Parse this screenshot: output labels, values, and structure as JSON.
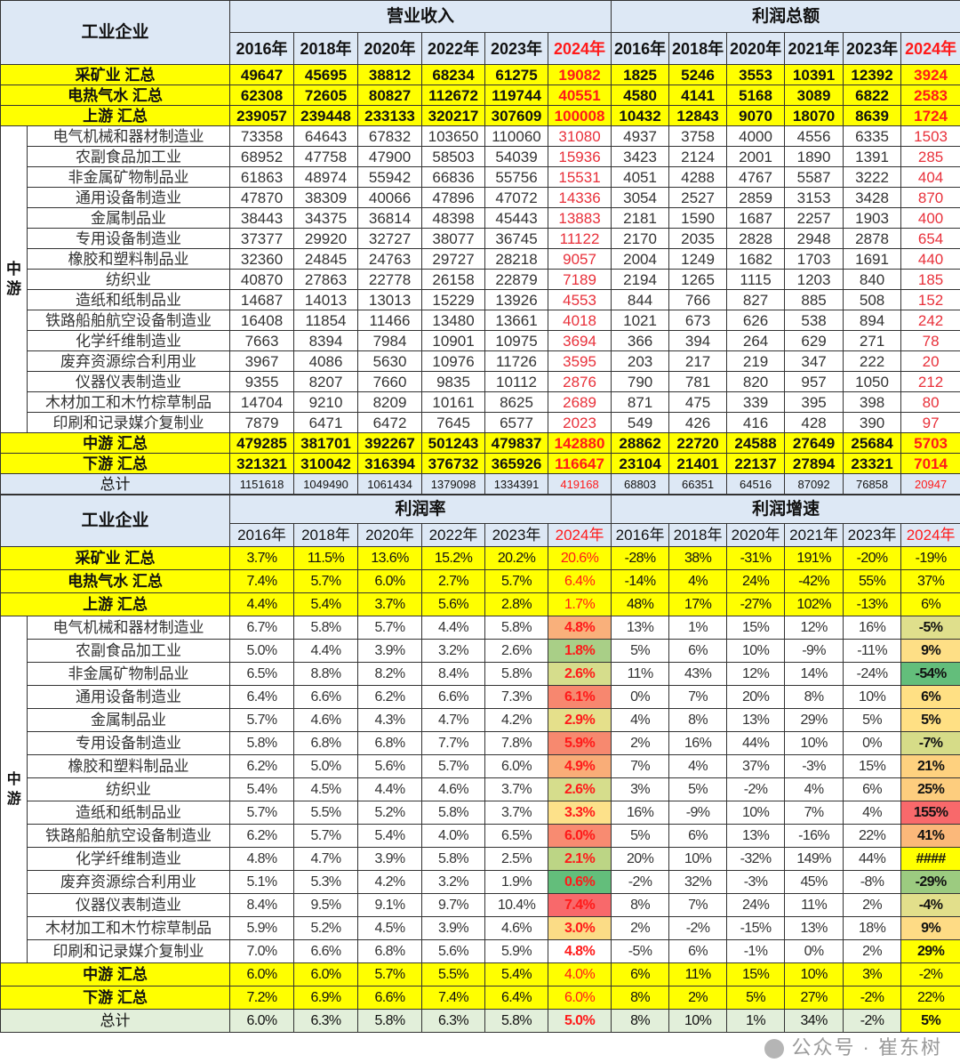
{
  "top": {
    "corner": "工业企业",
    "group_a": "营业收入",
    "group_b": "利润总额",
    "years_a": [
      "2016年",
      "2018年",
      "2020年",
      "2022年",
      "2023年",
      "2024年"
    ],
    "years_b": [
      "2016年",
      "2018年",
      "2020年",
      "2021年",
      "2023年",
      "2024年"
    ],
    "mid_group_label": "中游",
    "rows": [
      {
        "type": "yel",
        "label": "采矿业 汇总",
        "a": [
          "49647",
          "45695",
          "38812",
          "68234",
          "61275",
          "19082"
        ],
        "b": [
          "1825",
          "5246",
          "3553",
          "10391",
          "12392",
          "3924"
        ]
      },
      {
        "type": "yel",
        "label": "电热气水 汇总",
        "a": [
          "62308",
          "72605",
          "80827",
          "112672",
          "119744",
          "40551"
        ],
        "b": [
          "4580",
          "4141",
          "5168",
          "3089",
          "6822",
          "2583"
        ]
      },
      {
        "type": "yel",
        "label": "上游 汇总",
        "a": [
          "239057",
          "239448",
          "233133",
          "320217",
          "307609",
          "100008"
        ],
        "b": [
          "10432",
          "12843",
          "9070",
          "18070",
          "8639",
          "1724"
        ]
      },
      {
        "type": "mid",
        "label": "电气机械和器材制造业",
        "a": [
          "73358",
          "64643",
          "67832",
          "103650",
          "110060",
          "31080"
        ],
        "b": [
          "4937",
          "3758",
          "4000",
          "4556",
          "6335",
          "1503"
        ]
      },
      {
        "type": "mid",
        "label": "农副食品加工业",
        "a": [
          "68952",
          "47758",
          "47900",
          "58503",
          "54039",
          "15936"
        ],
        "b": [
          "3423",
          "2124",
          "2001",
          "1890",
          "1391",
          "285"
        ]
      },
      {
        "type": "mid",
        "label": "非金属矿物制品业",
        "a": [
          "61863",
          "48974",
          "55942",
          "66836",
          "55756",
          "15531"
        ],
        "b": [
          "4051",
          "4288",
          "4767",
          "5587",
          "3222",
          "404"
        ]
      },
      {
        "type": "mid",
        "label": "通用设备制造业",
        "a": [
          "47870",
          "38309",
          "40066",
          "47896",
          "47072",
          "14336"
        ],
        "b": [
          "3054",
          "2527",
          "2859",
          "3153",
          "3428",
          "870"
        ]
      },
      {
        "type": "mid",
        "label": "金属制品业",
        "a": [
          "38443",
          "34375",
          "36814",
          "48398",
          "45443",
          "13883"
        ],
        "b": [
          "2181",
          "1590",
          "1687",
          "2257",
          "1903",
          "400"
        ]
      },
      {
        "type": "mid",
        "label": "专用设备制造业",
        "a": [
          "37377",
          "29920",
          "32727",
          "38077",
          "36745",
          "11122"
        ],
        "b": [
          "2170",
          "2035",
          "2828",
          "2948",
          "2878",
          "654"
        ]
      },
      {
        "type": "mid",
        "label": "橡胶和塑料制品业",
        "a": [
          "32360",
          "24845",
          "24763",
          "29727",
          "28218",
          "9057"
        ],
        "b": [
          "2004",
          "1249",
          "1682",
          "1703",
          "1691",
          "440"
        ]
      },
      {
        "type": "mid",
        "label": "纺织业",
        "a": [
          "40870",
          "27863",
          "22778",
          "26158",
          "22879",
          "7189"
        ],
        "b": [
          "2194",
          "1265",
          "1115",
          "1203",
          "840",
          "185"
        ]
      },
      {
        "type": "mid",
        "label": "造纸和纸制品业",
        "a": [
          "14687",
          "14013",
          "13013",
          "15229",
          "13926",
          "4553"
        ],
        "b": [
          "844",
          "766",
          "827",
          "885",
          "508",
          "152"
        ]
      },
      {
        "type": "mid",
        "label": "铁路船舶航空设备制造业",
        "a": [
          "16408",
          "11854",
          "11466",
          "13480",
          "13661",
          "4018"
        ],
        "b": [
          "1021",
          "673",
          "626",
          "538",
          "894",
          "242"
        ]
      },
      {
        "type": "mid",
        "label": "化学纤维制造业",
        "a": [
          "7663",
          "8394",
          "7984",
          "10901",
          "10975",
          "3694"
        ],
        "b": [
          "366",
          "394",
          "264",
          "629",
          "271",
          "78"
        ]
      },
      {
        "type": "mid",
        "label": "废弃资源综合利用业",
        "a": [
          "3967",
          "4086",
          "5630",
          "10976",
          "11726",
          "3595"
        ],
        "b": [
          "203",
          "217",
          "219",
          "347",
          "222",
          "20"
        ]
      },
      {
        "type": "mid",
        "label": "仪器仪表制造业",
        "a": [
          "9355",
          "8207",
          "7660",
          "9835",
          "10112",
          "2876"
        ],
        "b": [
          "790",
          "781",
          "820",
          "957",
          "1050",
          "212"
        ]
      },
      {
        "type": "mid",
        "label": "木材加工和木竹棕草制品",
        "a": [
          "14704",
          "9210",
          "8209",
          "10161",
          "8625",
          "2689"
        ],
        "b": [
          "871",
          "475",
          "339",
          "395",
          "398",
          "80"
        ]
      },
      {
        "type": "mid",
        "label": "印刷和记录媒介复制业",
        "a": [
          "7879",
          "6471",
          "6472",
          "7645",
          "6577",
          "2023"
        ],
        "b": [
          "549",
          "426",
          "416",
          "428",
          "390",
          "97"
        ]
      },
      {
        "type": "yel",
        "label": "中游 汇总",
        "a": [
          "479285",
          "381701",
          "392267",
          "501243",
          "479837",
          "142880"
        ],
        "b": [
          "28862",
          "22720",
          "24588",
          "27649",
          "25684",
          "5703"
        ]
      },
      {
        "type": "yel",
        "label": "下游 汇总",
        "a": [
          "321321",
          "310042",
          "316394",
          "376732",
          "365926",
          "116647"
        ],
        "b": [
          "23104",
          "21401",
          "22137",
          "27894",
          "23321",
          "7014"
        ]
      },
      {
        "type": "tot",
        "label": "总计",
        "a": [
          "1151618",
          "1049490",
          "1061434",
          "1379098",
          "1334391",
          "419168"
        ],
        "b": [
          "68803",
          "66351",
          "64516",
          "87092",
          "76858",
          "20947"
        ]
      }
    ]
  },
  "bottom": {
    "corner": "工业企业",
    "group_a": "利润率",
    "group_b": "利润增速",
    "years_a": [
      "2016年",
      "2018年",
      "2020年",
      "2022年",
      "2023年",
      "2024年"
    ],
    "years_b": [
      "2016年",
      "2018年",
      "2020年",
      "2021年",
      "2023年",
      "2024年"
    ],
    "mid_group_label": "中游",
    "rows": [
      {
        "type": "yel",
        "label": "采矿业 汇总",
        "a": [
          "3.7%",
          "11.5%",
          "13.6%",
          "15.2%",
          "20.2%",
          "20.6%"
        ],
        "b": [
          "-28%",
          "38%",
          "-31%",
          "191%",
          "-20%",
          "-19%"
        ],
        "ca": "#ffff00",
        "cb": "#ffff00"
      },
      {
        "type": "yel",
        "label": "电热气水 汇总",
        "a": [
          "7.4%",
          "5.7%",
          "6.0%",
          "2.7%",
          "5.7%",
          "6.4%"
        ],
        "b": [
          "-14%",
          "4%",
          "24%",
          "-42%",
          "55%",
          "37%"
        ],
        "ca": "#ffff00",
        "cb": "#ffff00"
      },
      {
        "type": "yel",
        "label": "上游 汇总",
        "a": [
          "4.4%",
          "5.4%",
          "3.7%",
          "5.6%",
          "2.8%",
          "1.7%"
        ],
        "b": [
          "48%",
          "17%",
          "-27%",
          "102%",
          "-13%",
          "6%"
        ],
        "ca": "#ffff00",
        "cb": "#ffff00"
      },
      {
        "type": "mid",
        "label": "电气机械和器材制造业",
        "a": [
          "6.7%",
          "5.8%",
          "5.7%",
          "4.4%",
          "5.8%",
          "4.8%"
        ],
        "b": [
          "13%",
          "1%",
          "15%",
          "12%",
          "16%",
          "-5%"
        ],
        "ca": "#f9b07b",
        "cb": "#dfdf8c"
      },
      {
        "type": "mid",
        "label": "农副食品加工业",
        "a": [
          "5.0%",
          "4.4%",
          "3.9%",
          "3.2%",
          "2.6%",
          "1.8%"
        ],
        "b": [
          "5%",
          "6%",
          "10%",
          "-9%",
          "-11%",
          "9%"
        ],
        "ca": "#a9cf87",
        "cb": "#fedf86"
      },
      {
        "type": "mid",
        "label": "非金属矿物制品业",
        "a": [
          "6.5%",
          "8.8%",
          "8.2%",
          "8.4%",
          "5.8%",
          "2.6%"
        ],
        "b": [
          "11%",
          "43%",
          "12%",
          "14%",
          "-24%",
          "-54%"
        ],
        "ca": "#d6dd8c",
        "cb": "#63be7b"
      },
      {
        "type": "mid",
        "label": "通用设备制造业",
        "a": [
          "6.4%",
          "6.6%",
          "6.2%",
          "6.6%",
          "7.3%",
          "6.1%"
        ],
        "b": [
          "0%",
          "7%",
          "20%",
          "8%",
          "10%",
          "6%"
        ],
        "ca": "#f7876f",
        "cb": "#ffe084"
      },
      {
        "type": "mid",
        "label": "金属制品业",
        "a": [
          "5.7%",
          "4.6%",
          "4.3%",
          "4.7%",
          "4.2%",
          "2.9%"
        ],
        "b": [
          "4%",
          "8%",
          "13%",
          "29%",
          "5%",
          "5%"
        ],
        "ca": "#e5e08b",
        "cb": "#ffe084"
      },
      {
        "type": "mid",
        "label": "专用设备制造业",
        "a": [
          "5.8%",
          "6.8%",
          "6.8%",
          "7.7%",
          "7.8%",
          "5.9%"
        ],
        "b": [
          "2%",
          "16%",
          "44%",
          "10%",
          "0%",
          "-7%"
        ],
        "ca": "#f7896f",
        "cb": "#d6dc88"
      },
      {
        "type": "mid",
        "label": "橡胶和塑料制品业",
        "a": [
          "6.2%",
          "5.0%",
          "5.6%",
          "5.7%",
          "6.0%",
          "4.9%"
        ],
        "b": [
          "7%",
          "4%",
          "37%",
          "-3%",
          "15%",
          "21%"
        ],
        "ca": "#f9ad78",
        "cb": "#fed17f"
      },
      {
        "type": "mid",
        "label": "纺织业",
        "a": [
          "5.4%",
          "4.5%",
          "4.4%",
          "4.6%",
          "3.7%",
          "2.6%"
        ],
        "b": [
          "3%",
          "5%",
          "-2%",
          "4%",
          "6%",
          "25%"
        ],
        "ca": "#d6dd8c",
        "cb": "#fdcd7e"
      },
      {
        "type": "mid",
        "label": "造纸和纸制品业",
        "a": [
          "5.7%",
          "5.5%",
          "5.2%",
          "5.8%",
          "3.7%",
          "3.3%"
        ],
        "b": [
          "16%",
          "-9%",
          "10%",
          "7%",
          "4%",
          "155%"
        ],
        "ca": "#fde18a",
        "cb": "#f8696b"
      },
      {
        "type": "mid",
        "label": "铁路船舶航空设备制造业",
        "a": [
          "6.2%",
          "5.7%",
          "5.4%",
          "4.0%",
          "6.5%",
          "6.0%"
        ],
        "b": [
          "5%",
          "6%",
          "13%",
          "-16%",
          "22%",
          "41%"
        ],
        "ca": "#f88b71",
        "cb": "#fbb87a"
      },
      {
        "type": "mid",
        "label": "化学纤维制造业",
        "a": [
          "4.8%",
          "4.7%",
          "3.9%",
          "5.8%",
          "2.5%",
          "2.1%"
        ],
        "b": [
          "20%",
          "10%",
          "-32%",
          "149%",
          "44%",
          "####"
        ],
        "ca": "#bcd585",
        "cb": "#ffff00"
      },
      {
        "type": "mid",
        "label": "废弃资源综合利用业",
        "a": [
          "5.1%",
          "5.3%",
          "4.2%",
          "3.2%",
          "1.9%",
          "0.6%"
        ],
        "b": [
          "-2%",
          "32%",
          "-3%",
          "45%",
          "-8%",
          "-29%"
        ],
        "ca": "#63be7b",
        "cb": "#9ccb80"
      },
      {
        "type": "mid",
        "label": "仪器仪表制造业",
        "a": [
          "8.4%",
          "9.5%",
          "9.1%",
          "9.7%",
          "10.4%",
          "7.4%"
        ],
        "b": [
          "8%",
          "7%",
          "24%",
          "11%",
          "2%",
          "-4%"
        ],
        "ca": "#f8696b",
        "cb": "#e2df8b"
      },
      {
        "type": "mid",
        "label": "木材加工和木竹棕草制品",
        "a": [
          "5.9%",
          "5.2%",
          "4.5%",
          "3.9%",
          "4.6%",
          "3.0%"
        ],
        "b": [
          "2%",
          "-2%",
          "-15%",
          "13%",
          "18%",
          "9%"
        ],
        "ca": "#fbdc86",
        "cb": "#fedb85"
      },
      {
        "type": "mid",
        "label": "印刷和记录媒介复制业",
        "a": [
          "7.0%",
          "6.6%",
          "6.8%",
          "5.6%",
          "5.9%",
          "4.8%"
        ],
        "b": [
          "-5%",
          "6%",
          "-1%",
          "0%",
          "2%",
          "29%"
        ],
        "ca": "#ffffff",
        "cb": "#ffff00"
      },
      {
        "type": "yel",
        "label": "中游 汇总",
        "a": [
          "6.0%",
          "6.0%",
          "5.7%",
          "5.5%",
          "5.4%",
          "4.0%"
        ],
        "b": [
          "6%",
          "11%",
          "15%",
          "10%",
          "3%",
          "-2%"
        ],
        "ca": "#ffff00",
        "cb": "#ffff00"
      },
      {
        "type": "yel",
        "label": "下游 汇总",
        "a": [
          "7.2%",
          "6.9%",
          "6.6%",
          "7.4%",
          "6.4%",
          "6.0%"
        ],
        "b": [
          "8%",
          "2%",
          "5%",
          "27%",
          "-2%",
          "22%"
        ],
        "ca": "#ffff00",
        "cb": "#ffff00"
      },
      {
        "type": "tot",
        "label": "总计",
        "a": [
          "6.0%",
          "6.3%",
          "5.8%",
          "6.3%",
          "5.8%",
          "5.0%"
        ],
        "b": [
          "8%",
          "10%",
          "1%",
          "34%",
          "-2%",
          "5%"
        ],
        "ca": "#e2efda",
        "cb": "#ffff00"
      }
    ]
  },
  "watermark": "公众号 · 崔东树"
}
